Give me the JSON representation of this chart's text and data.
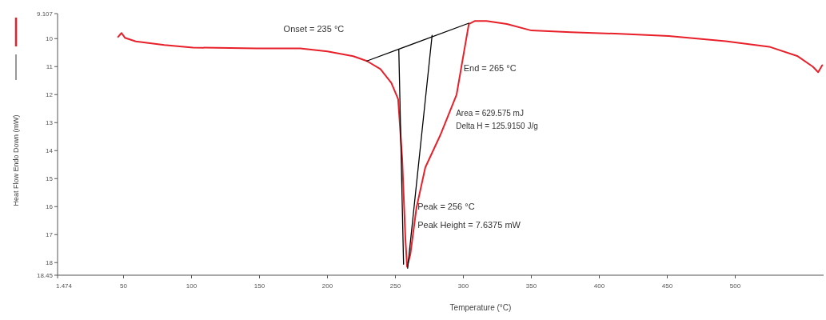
{
  "chart_data": {
    "type": "line",
    "xlabel": "Temperature (°C)",
    "ylabel": "Heat Flow Endo Down (mW)",
    "xlim": [
      1.474,
      565
    ],
    "xticks": [
      1.474,
      50,
      100,
      150,
      200,
      250,
      300,
      350,
      400,
      450,
      500
    ],
    "ylim": [
      18.45,
      9.107
    ],
    "yticks": [
      9.107,
      10,
      11,
      12,
      13,
      14,
      15,
      16,
      17,
      18,
      18.45
    ],
    "grid": false,
    "marker": "none",
    "line_style": "solid",
    "series": [
      {
        "color": "#e8202a",
        "x": [
          46,
          48.5,
          51,
          59,
          80,
          101,
          148,
          180,
          200,
          219,
          229,
          239,
          247,
          252,
          255,
          257.4,
          258.6,
          261,
          265.5,
          272,
          283,
          295,
          304,
          308.5,
          317,
          332,
          350,
          379,
          415,
          451,
          493,
          525,
          546,
          557,
          561,
          564
        ],
        "values": [
          9.94,
          9.8,
          9.97,
          10.1,
          10.23,
          10.32,
          10.35,
          10.35,
          10.46,
          10.63,
          10.8,
          11.09,
          11.58,
          12.16,
          14.3,
          17.2,
          18.15,
          17.7,
          16.04,
          14.6,
          13.45,
          12.0,
          9.48,
          9.37,
          9.37,
          9.48,
          9.71,
          9.77,
          9.83,
          9.91,
          10.09,
          10.29,
          10.63,
          11.0,
          11.2,
          10.95
        ]
      },
      {
        "color": "#000000",
        "x": [
          229,
          304
        ],
        "values": [
          10.8,
          9.45
        ]
      },
      {
        "color": "#000000",
        "x": [
          252.5,
          256
        ],
        "values": [
          10.4,
          18.06
        ]
      },
      {
        "color": "#000000",
        "x": [
          277,
          259
        ],
        "values": [
          9.88,
          18.2
        ]
      }
    ],
    "annotations": [
      "Onset = 235 °C",
      "End = 265 °C",
      "Area = 629.575 mJ",
      "Delta H = 125.9150 J/g",
      "Peak = 256 °C",
      "Peak Height = 7.6375 mW"
    ]
  }
}
